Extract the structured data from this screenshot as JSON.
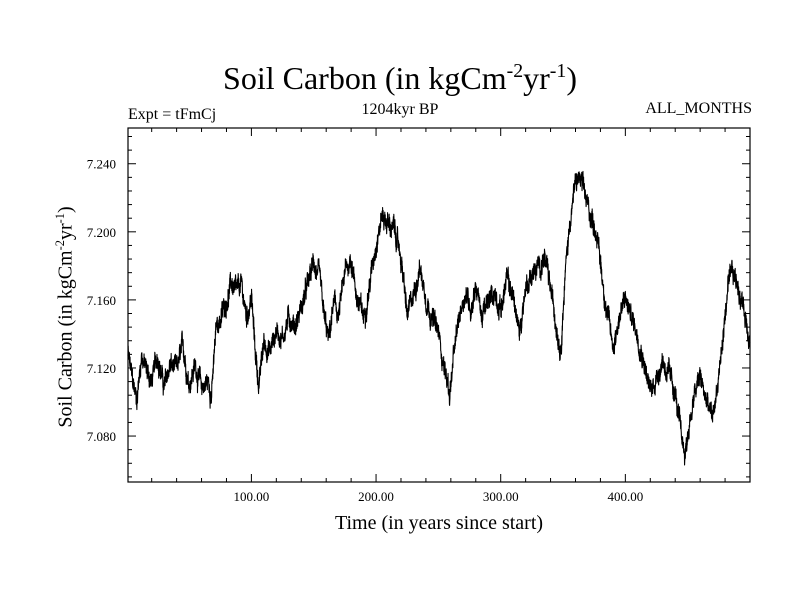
{
  "chart_data": {
    "type": "line",
    "title": {
      "main": "Soil Carbon (in kgCm",
      "sup1": "-2",
      "mid": "yr",
      "sup2": "-1",
      "end": ")"
    },
    "subtitle": "1204kyr BP",
    "experiment": "Expt = tFmCj",
    "months": "ALL_MONTHS",
    "xlabel": "Time (in years since start)",
    "ylabel": {
      "main": "Soil Carbon (in kgCm",
      "sup1": "-2",
      "mid": "yr",
      "sup2": "-1",
      "end": ")"
    },
    "xlim": [
      1,
      500
    ],
    "ylim": [
      7.053,
      7.261
    ],
    "x_ticks": [
      100,
      200,
      300,
      400
    ],
    "x_tick_labels": [
      "100.00",
      "200.00",
      "300.00",
      "400.00"
    ],
    "y_ticks": [
      7.08,
      7.12,
      7.16,
      7.2,
      7.24
    ],
    "y_tick_labels": [
      "7.080",
      "7.120",
      "7.160",
      "7.200",
      "7.240"
    ],
    "series": [
      {
        "name": "Soil Carbon",
        "color": "#000000",
        "points": [
          [
            1,
            7.128
          ],
          [
            5,
            7.11
          ],
          [
            8,
            7.102
          ],
          [
            12,
            7.128
          ],
          [
            16,
            7.118
          ],
          [
            20,
            7.112
          ],
          [
            25,
            7.128
          ],
          [
            30,
            7.108
          ],
          [
            35,
            7.122
          ],
          [
            40,
            7.118
          ],
          [
            45,
            7.132
          ],
          [
            50,
            7.112
          ],
          [
            55,
            7.122
          ],
          [
            60,
            7.108
          ],
          [
            65,
            7.112
          ],
          [
            68,
            7.105
          ],
          [
            72,
            7.145
          ],
          [
            76,
            7.15
          ],
          [
            80,
            7.16
          ],
          [
            84,
            7.17
          ],
          [
            88,
            7.163
          ],
          [
            92,
            7.168
          ],
          [
            96,
            7.15
          ],
          [
            100,
            7.162
          ],
          [
            103,
            7.13
          ],
          [
            106,
            7.11
          ],
          [
            110,
            7.135
          ],
          [
            115,
            7.13
          ],
          [
            120,
            7.142
          ],
          [
            125,
            7.138
          ],
          [
            130,
            7.15
          ],
          [
            135,
            7.145
          ],
          [
            140,
            7.155
          ],
          [
            145,
            7.168
          ],
          [
            150,
            7.182
          ],
          [
            155,
            7.17
          ],
          [
            158,
            7.15
          ],
          [
            162,
            7.135
          ],
          [
            166,
            7.158
          ],
          [
            170,
            7.15
          ],
          [
            175,
            7.175
          ],
          [
            180,
            7.185
          ],
          [
            185,
            7.16
          ],
          [
            190,
            7.15
          ],
          [
            195,
            7.17
          ],
          [
            200,
            7.195
          ],
          [
            205,
            7.21
          ],
          [
            210,
            7.205
          ],
          [
            215,
            7.2
          ],
          [
            220,
            7.185
          ],
          [
            225,
            7.15
          ],
          [
            230,
            7.162
          ],
          [
            235,
            7.18
          ],
          [
            240,
            7.162
          ],
          [
            245,
            7.15
          ],
          [
            250,
            7.14
          ],
          [
            255,
            7.12
          ],
          [
            259,
            7.105
          ],
          [
            263,
            7.13
          ],
          [
            268,
            7.155
          ],
          [
            272,
            7.165
          ],
          [
            276,
            7.155
          ],
          [
            280,
            7.17
          ],
          [
            285,
            7.15
          ],
          [
            290,
            7.158
          ],
          [
            295,
            7.165
          ],
          [
            300,
            7.155
          ],
          [
            305,
            7.172
          ],
          [
            310,
            7.162
          ],
          [
            315,
            7.14
          ],
          [
            320,
            7.168
          ],
          [
            325,
            7.175
          ],
          [
            330,
            7.178
          ],
          [
            335,
            7.185
          ],
          [
            340,
            7.165
          ],
          [
            345,
            7.145
          ],
          [
            348,
            7.132
          ],
          [
            352,
            7.178
          ],
          [
            356,
            7.21
          ],
          [
            360,
            7.228
          ],
          [
            363,
            7.232
          ],
          [
            367,
            7.222
          ],
          [
            372,
            7.21
          ],
          [
            377,
            7.2
          ],
          [
            382,
            7.17
          ],
          [
            386,
            7.15
          ],
          [
            390,
            7.132
          ],
          [
            395,
            7.15
          ],
          [
            400,
            7.16
          ],
          [
            405,
            7.15
          ],
          [
            410,
            7.14
          ],
          [
            415,
            7.125
          ],
          [
            420,
            7.105
          ],
          [
            425,
            7.115
          ],
          [
            430,
            7.125
          ],
          [
            435,
            7.115
          ],
          [
            440,
            7.105
          ],
          [
            445,
            7.078
          ],
          [
            448,
            7.07
          ],
          [
            452,
            7.09
          ],
          [
            456,
            7.105
          ],
          [
            460,
            7.115
          ],
          [
            465,
            7.1
          ],
          [
            470,
            7.09
          ],
          [
            474,
            7.11
          ],
          [
            478,
            7.135
          ],
          [
            482,
            7.165
          ],
          [
            486,
            7.175
          ],
          [
            490,
            7.17
          ],
          [
            494,
            7.158
          ],
          [
            498,
            7.145
          ],
          [
            500,
            7.138
          ]
        ]
      }
    ]
  }
}
